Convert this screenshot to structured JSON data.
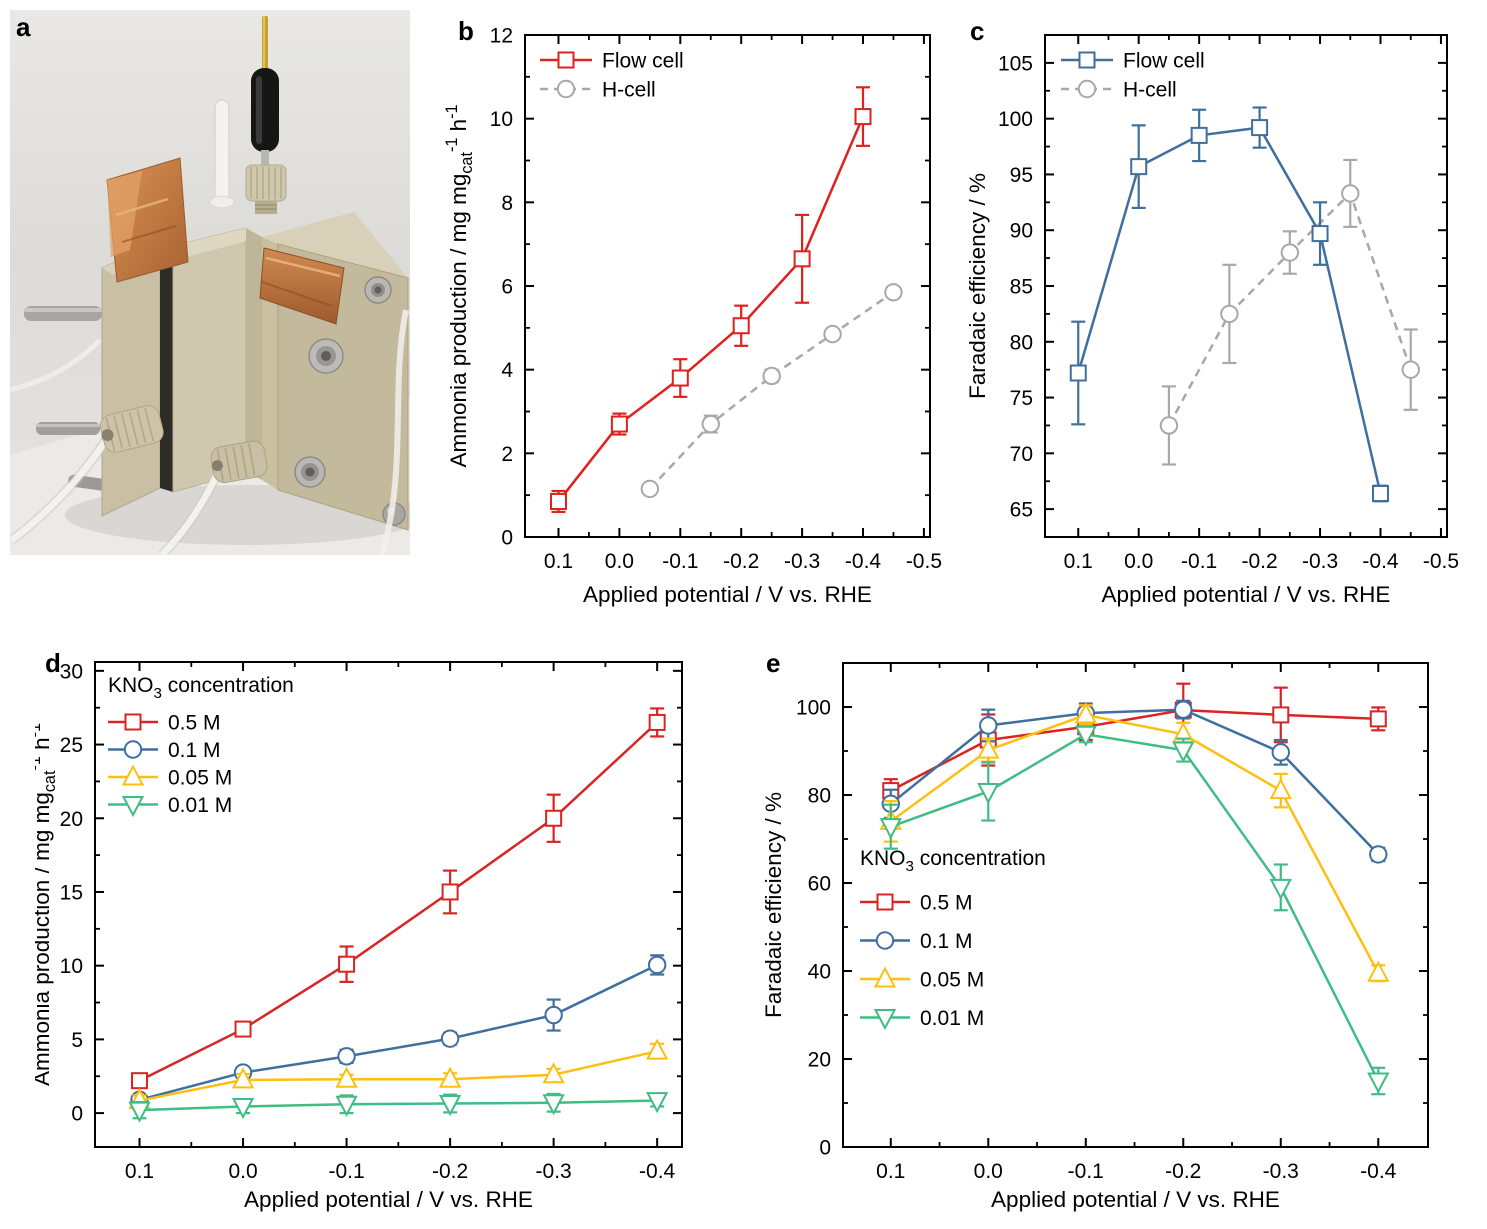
{
  "figure": {
    "panel_labels": {
      "a": "a",
      "b": "b",
      "c": "c",
      "d": "d",
      "e": "e"
    }
  },
  "panel_a": {
    "label": "a",
    "content": "photograph of electrochemical flow cell with copper foil current collectors, reference electrode port and tubing"
  },
  "chart_data": [
    {
      "id": "b",
      "panel_label": "b",
      "type": "line",
      "x_axis": {
        "title": "Applied potential / V vs. RHE",
        "tick_values": [
          0.1,
          0.0,
          -0.1,
          -0.2,
          -0.3,
          -0.4,
          -0.5
        ],
        "tick_labels": [
          "0.1",
          "0.0",
          "-0.1",
          "-0.2",
          "-0.3",
          "-0.4",
          "-0.5"
        ],
        "range": [
          0.155,
          -0.51
        ]
      },
      "y_axis": {
        "label_rich": [
          {
            "t": "Ammonia production / mg mg"
          },
          {
            "t": "cat",
            "sub": true
          },
          {
            "t": "-1",
            "sup": true
          },
          {
            "t": " h",
            "plain": true
          },
          {
            "t": "-1",
            "sup": true
          }
        ],
        "tick_values": [
          0,
          2,
          4,
          6,
          8,
          10,
          12
        ],
        "tick_labels": [
          "0",
          "2",
          "4",
          "6",
          "8",
          "10",
          "12"
        ],
        "range": [
          0,
          12
        ]
      },
      "legend": {
        "position": "top-left",
        "entries": [
          {
            "label": "Flow cell",
            "series": "Flow cell"
          },
          {
            "label": "H-cell",
            "series": "H-cell"
          }
        ]
      },
      "series": [
        {
          "name": "H-cell",
          "marker": "circle",
          "color": "#a8a8a8",
          "dash": true,
          "x": [
            -0.05,
            -0.15,
            -0.25,
            -0.35,
            -0.45
          ],
          "y": [
            1.15,
            2.7,
            3.85,
            4.85,
            5.85
          ],
          "yerr": [
            0.1,
            0.2,
            0.15,
            0.1,
            0.1
          ]
        },
        {
          "name": "Flow cell",
          "marker": "square",
          "color": "#e0211c",
          "dash": false,
          "x": [
            0.1,
            0.0,
            -0.1,
            -0.2,
            -0.3,
            -0.4
          ],
          "y": [
            0.85,
            2.7,
            3.8,
            5.05,
            6.65,
            10.05
          ],
          "yerr": [
            0.25,
            0.25,
            0.45,
            0.48,
            1.05,
            0.7
          ]
        }
      ]
    },
    {
      "id": "c",
      "panel_label": "c",
      "type": "line",
      "x_axis": {
        "title": "Applied potential / V vs. RHE",
        "tick_values": [
          0.1,
          0.0,
          -0.1,
          -0.2,
          -0.3,
          -0.4,
          -0.5
        ],
        "tick_labels": [
          "0.1",
          "0.0",
          "-0.1",
          "-0.2",
          "-0.3",
          "-0.4",
          "-0.5"
        ],
        "range": [
          0.155,
          -0.51
        ]
      },
      "y_axis": {
        "label_rich": [
          {
            "t": "Faradaic efficiency / %"
          }
        ],
        "tick_values": [
          65,
          70,
          75,
          80,
          85,
          90,
          95,
          100,
          105
        ],
        "tick_labels": [
          "65",
          "70",
          "75",
          "80",
          "85",
          "90",
          "95",
          "100",
          "105"
        ],
        "range": [
          62.5,
          107.5
        ]
      },
      "legend": {
        "position": "top-left",
        "entries": [
          {
            "label": "Flow cell",
            "series": "Flow cell"
          },
          {
            "label": "H-cell",
            "series": "H-cell"
          }
        ]
      },
      "series": [
        {
          "name": "H-cell",
          "marker": "circle",
          "color": "#a8a8a8",
          "dash": true,
          "x": [
            -0.05,
            -0.15,
            -0.25,
            -0.35,
            -0.45
          ],
          "y": [
            72.5,
            82.5,
            88.0,
            93.3,
            77.5
          ],
          "yerr": [
            3.5,
            4.4,
            1.9,
            3.0,
            3.6
          ]
        },
        {
          "name": "Flow cell",
          "marker": "square",
          "color": "#3f6f9e",
          "dash": false,
          "x": [
            0.1,
            0.0,
            -0.1,
            -0.2,
            -0.3,
            -0.4
          ],
          "y": [
            77.2,
            95.7,
            98.5,
            99.2,
            89.7,
            66.4
          ],
          "yerr": [
            4.6,
            3.7,
            2.3,
            1.8,
            2.8,
            0.7
          ]
        }
      ]
    },
    {
      "id": "d",
      "panel_label": "d",
      "type": "line",
      "x_axis": {
        "title": "Applied potential / V vs. RHE",
        "tick_values": [
          0.1,
          0.0,
          -0.1,
          -0.2,
          -0.3,
          -0.4
        ],
        "tick_labels": [
          "0.1",
          "0.0",
          "-0.1",
          "-0.2",
          "-0.3",
          "-0.4"
        ],
        "range": [
          0.143,
          -0.424
        ]
      },
      "y_axis": {
        "label_rich": [
          {
            "t": "Ammonia production / mg mg"
          },
          {
            "t": "cat",
            "sub": true
          },
          {
            "t": "-1",
            "sup": true
          },
          {
            "t": " h",
            "plain": true
          },
          {
            "t": "-1",
            "sup": true
          }
        ],
        "tick_values": [
          0,
          5,
          10,
          15,
          20,
          25,
          30
        ],
        "tick_labels": [
          "0",
          "5",
          "10",
          "15",
          "20",
          "25",
          "30"
        ],
        "range": [
          -2.3,
          30.6
        ]
      },
      "legend": {
        "position": "top-left",
        "title_rich": [
          {
            "t": "KNO"
          },
          {
            "t": "3",
            "sub": true
          },
          {
            "t": " concentration"
          }
        ],
        "entries": [
          {
            "label": "0.5 M",
            "series": "0.5 M"
          },
          {
            "label": "0.1 M",
            "series": "0.1 M"
          },
          {
            "label": "0.05 M",
            "series": "0.05 M"
          },
          {
            "label": "0.01 M",
            "series": "0.01 M"
          }
        ]
      },
      "series": [
        {
          "name": "0.5 M",
          "marker": "square",
          "color": "#d92423",
          "dash": false,
          "x": [
            0.1,
            0.0,
            -0.1,
            -0.2,
            -0.3,
            -0.4
          ],
          "y": [
            2.2,
            5.7,
            10.1,
            15.0,
            20.0,
            26.5
          ],
          "yerr": [
            0.45,
            0.3,
            1.2,
            1.45,
            1.6,
            0.95
          ]
        },
        {
          "name": "0.1 M",
          "marker": "circle",
          "color": "#3f6f9e",
          "dash": false,
          "x": [
            0.1,
            0.0,
            -0.1,
            -0.2,
            -0.3,
            -0.4
          ],
          "y": [
            0.9,
            2.75,
            3.85,
            5.05,
            6.65,
            10.05
          ],
          "yerr": [
            0.25,
            0.35,
            0.45,
            0.4,
            1.05,
            0.65
          ]
        },
        {
          "name": "0.05 M",
          "marker": "triangle-up",
          "color": "#fdc011",
          "dash": false,
          "x": [
            0.1,
            0.0,
            -0.1,
            -0.2,
            -0.3,
            -0.4
          ],
          "y": [
            0.85,
            2.25,
            2.3,
            2.3,
            2.6,
            4.2
          ],
          "yerr": [
            0.35,
            0.4,
            0.3,
            0.4,
            0.4,
            0.5
          ]
        },
        {
          "name": "0.01 M",
          "marker": "triangle-down",
          "color": "#3fbd85",
          "dash": false,
          "x": [
            0.1,
            0.0,
            -0.1,
            -0.2,
            -0.3,
            -0.4
          ],
          "y": [
            0.2,
            0.45,
            0.6,
            0.65,
            0.7,
            0.85
          ],
          "yerr": [
            0.55,
            0.45,
            0.6,
            0.6,
            0.6,
            0.4
          ]
        }
      ]
    },
    {
      "id": "e",
      "panel_label": "e",
      "type": "line",
      "x_axis": {
        "title": "Applied potential / V vs. RHE",
        "tick_values": [
          0.1,
          0.0,
          -0.1,
          -0.2,
          -0.3,
          -0.4
        ],
        "tick_labels": [
          "0.1",
          "0.0",
          "-0.1",
          "-0.2",
          "-0.3",
          "-0.4"
        ],
        "range": [
          0.149,
          -0.451
        ]
      },
      "y_axis": {
        "label_rich": [
          {
            "t": "Faradaic efficiency / %"
          }
        ],
        "tick_values": [
          0,
          20,
          40,
          60,
          80,
          100
        ],
        "tick_labels": [
          "0",
          "20",
          "40",
          "60",
          "80",
          "100"
        ],
        "range": [
          0,
          110
        ]
      },
      "legend": {
        "position": "bottom-left",
        "title_rich": [
          {
            "t": "KNO"
          },
          {
            "t": "3",
            "sub": true
          },
          {
            "t": " concentration"
          }
        ],
        "entries": [
          {
            "label": "0.5 M",
            "series": "0.5 M"
          },
          {
            "label": "0.1 M",
            "series": "0.1 M"
          },
          {
            "label": "0.05 M",
            "series": "0.05 M"
          },
          {
            "label": "0.01 M",
            "series": "0.01 M"
          }
        ]
      },
      "series": [
        {
          "name": "0.5 M",
          "marker": "square",
          "color": "#d92423",
          "dash": false,
          "x": [
            0.1,
            0.0,
            -0.1,
            -0.2,
            -0.3,
            -0.4
          ],
          "y": [
            81.0,
            92.5,
            95.5,
            99.3,
            98.2,
            97.3
          ],
          "yerr": [
            2.6,
            5.8,
            3.0,
            6.0,
            6.2,
            2.6
          ]
        },
        {
          "name": "0.1 M",
          "marker": "circle",
          "color": "#3f6f9e",
          "dash": false,
          "x": [
            0.1,
            0.0,
            -0.1,
            -0.2,
            -0.3,
            -0.4
          ],
          "y": [
            78.0,
            95.8,
            98.6,
            99.4,
            89.7,
            66.5
          ],
          "yerr": [
            3.2,
            3.6,
            2.2,
            2.0,
            2.8,
            1.5
          ]
        },
        {
          "name": "0.05 M",
          "marker": "triangle-up",
          "color": "#fdc011",
          "dash": false,
          "x": [
            0.1,
            0.0,
            -0.1,
            -0.2,
            -0.3,
            -0.4
          ],
          "y": [
            74.0,
            90.2,
            98.2,
            93.8,
            81.0,
            39.5
          ],
          "yerr": [
            4.6,
            2.6,
            2.2,
            2.6,
            3.8,
            1.8
          ]
        },
        {
          "name": "0.01 M",
          "marker": "triangle-down",
          "color": "#3fbd85",
          "dash": false,
          "x": [
            0.1,
            0.0,
            -0.1,
            -0.2,
            -0.3,
            -0.4
          ],
          "y": [
            72.8,
            80.8,
            93.8,
            90.2,
            59.0,
            15.0
          ],
          "yerr": [
            5.0,
            6.6,
            1.8,
            2.6,
            5.2,
            3.0
          ]
        }
      ]
    }
  ],
  "colors": {
    "flow_cell_red": "#e0211c",
    "flow_cell_blue": "#3f6f9e",
    "h_cell_gray": "#a8a8a8",
    "conc_05": "#d92423",
    "conc_01": "#3f6f9e",
    "conc_005": "#fdc011",
    "conc_001": "#3fbd85"
  }
}
